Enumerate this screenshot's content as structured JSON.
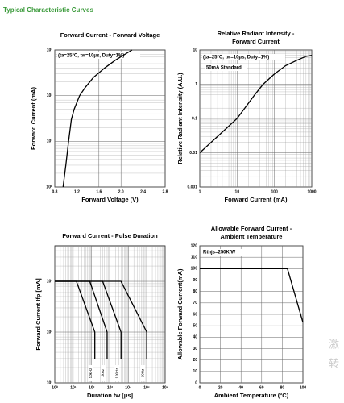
{
  "page_title": "Typical Characteristic Curves",
  "watermark": [
    "激",
    "转"
  ],
  "chart_data": [
    {
      "type": "line",
      "title": [
        "Forward Current - Forward Voltage"
      ],
      "x_label": "Forward Voltage (V)",
      "y_label": "Forward Current (mA)",
      "annotations": [
        "(ta=25°C, tw=10μs, Duty=1%)"
      ],
      "xlim": [
        0.8,
        2.8
      ],
      "xticks": [
        0.8,
        1.2,
        1.6,
        {
          "value": 2,
          "label": "2.0"
        },
        2.4,
        2.8
      ],
      "ylim": [
        1,
        1000
      ],
      "y_log": true,
      "yticks": [
        {
          "value": 1,
          "label": "10⁰"
        },
        {
          "value": 10,
          "label": "10¹"
        },
        {
          "value": 100,
          "label": "10²"
        },
        {
          "value": 1000,
          "label": "10³"
        }
      ],
      "grid": true,
      "series": [
        {
          "name": null,
          "color": "#000000",
          "x": [
            0.95,
            1.0,
            1.05,
            1.1,
            1.15,
            1.25,
            1.35,
            1.5,
            1.7,
            1.9,
            2.2
          ],
          "values": [
            1,
            3,
            10,
            30,
            50,
            100,
            150,
            250,
            400,
            600,
            1000
          ]
        }
      ]
    },
    {
      "type": "line",
      "title": [
        "Relative Radiant Intensity -",
        "Forward Current"
      ],
      "x_label": "Forward Current (mA)",
      "y_label": "Relative Radiant Intensity (A.U.)",
      "annotations": [
        "(ta=25°C, tw=10μs, Duty=1%)",
        "50mA Standard"
      ],
      "xlim": [
        1,
        1000
      ],
      "x_log": true,
      "xticks": [
        1,
        10,
        100,
        1000
      ],
      "ylim": [
        0.001,
        10
      ],
      "y_log": true,
      "yticks": [
        0.001,
        0.01,
        0.1,
        1,
        10
      ],
      "grid": true,
      "series": [
        {
          "name": null,
          "color": "#000000",
          "x": [
            1,
            3,
            10,
            30,
            50,
            100,
            200,
            400,
            700,
            1000
          ],
          "values": [
            0.01,
            0.03,
            0.1,
            0.5,
            1,
            2,
            3.5,
            5,
            6.5,
            7
          ]
        }
      ]
    },
    {
      "type": "line",
      "title": [
        "Forward Current - Pulse Duration"
      ],
      "x_label": "Duration tw [μs]",
      "y_label": "Forward Current Ifp [mA]",
      "xlim": [
        1,
        1000000
      ],
      "x_log": true,
      "xticks": [
        {
          "value": 1,
          "label": "10⁰"
        },
        {
          "value": 10,
          "label": "10¹"
        },
        {
          "value": 100,
          "label": "10²"
        },
        {
          "value": 1000,
          "label": "10³"
        },
        {
          "value": 10000,
          "label": "10⁴"
        },
        {
          "value": 100000,
          "label": "10⁵"
        },
        {
          "value": 1000000,
          "label": "10⁶"
        }
      ],
      "ylim": [
        10,
        5000
      ],
      "y_log": true,
      "yticks": [
        {
          "value": 10,
          "label": "10¹"
        },
        {
          "value": 100,
          "label": "10²"
        },
        {
          "value": 1000,
          "label": "10³"
        }
      ],
      "grid": true,
      "series": [
        {
          "name": "10kHz",
          "color": "#000000",
          "x": [
            1,
            15,
            150,
            150
          ],
          "values": [
            1000,
            1000,
            100,
            30
          ]
        },
        {
          "name": "1kHz",
          "color": "#000000",
          "x": [
            1,
            80,
            700,
            700
          ],
          "values": [
            1000,
            1000,
            100,
            30
          ]
        },
        {
          "name": "100Hz",
          "color": "#000000",
          "x": [
            1,
            400,
            4000,
            4000
          ],
          "values": [
            1000,
            1000,
            100,
            30
          ]
        },
        {
          "name": "10Hz",
          "color": "#000000",
          "x": [
            1,
            4000,
            100000,
            100000
          ],
          "values": [
            1000,
            1000,
            100,
            30
          ]
        }
      ]
    },
    {
      "type": "line",
      "title": [
        "Allowable Forward Current -",
        "Ambient Temperature"
      ],
      "x_label": "Ambient Temperature (°C)",
      "y_label": "Allowable Forward Current(mA)",
      "annotations": [
        "Rthjs=250K/W"
      ],
      "xlim": [
        0,
        100
      ],
      "xticks": [
        0,
        20,
        40,
        60,
        80,
        100
      ],
      "ylim": [
        0,
        120
      ],
      "yticks": [
        0,
        10,
        20,
        30,
        40,
        50,
        60,
        70,
        80,
        90,
        100,
        110,
        120
      ],
      "grid": true,
      "series": [
        {
          "name": null,
          "color": "#000000",
          "x": [
            0,
            85,
            100
          ],
          "values": [
            100,
            100,
            53
          ]
        }
      ]
    }
  ]
}
